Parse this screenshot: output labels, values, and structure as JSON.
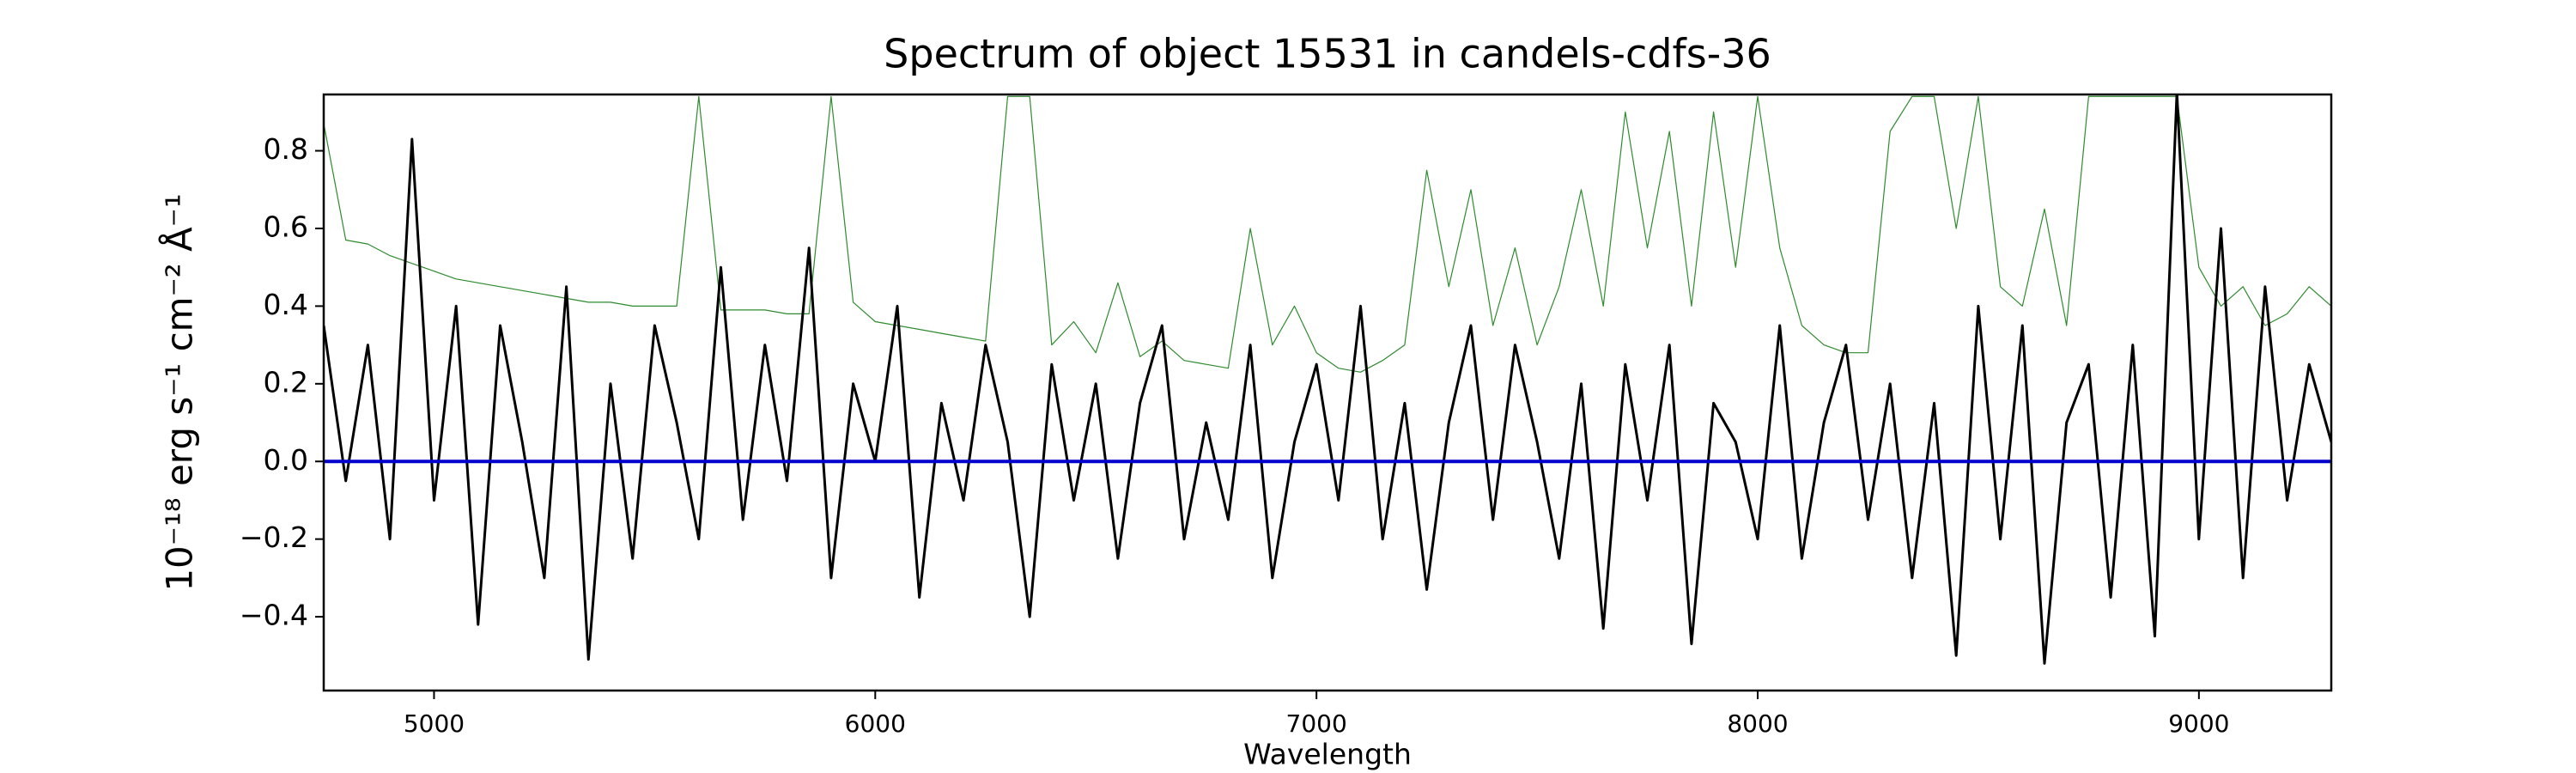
{
  "chart_data": {
    "type": "line",
    "title": "Spectrum of object 15531 in candels-cdfs-36",
    "xlabel": "Wavelength",
    "ylabel": "10⁻¹⁸ erg s⁻¹ cm⁻² Å⁻¹",
    "x": [
      4750,
      4800,
      4850,
      4900,
      4950,
      5000,
      5050,
      5100,
      5150,
      5200,
      5250,
      5300,
      5350,
      5400,
      5450,
      5500,
      5550,
      5600,
      5650,
      5700,
      5750,
      5800,
      5850,
      5900,
      5950,
      6000,
      6050,
      6100,
      6150,
      6200,
      6250,
      6300,
      6350,
      6400,
      6450,
      6500,
      6550,
      6600,
      6650,
      6700,
      6750,
      6800,
      6850,
      6900,
      6950,
      7000,
      7050,
      7100,
      7150,
      7200,
      7250,
      7300,
      7350,
      7400,
      7450,
      7500,
      7550,
      7600,
      7650,
      7700,
      7750,
      7800,
      7850,
      7900,
      7950,
      8000,
      8050,
      8100,
      8150,
      8200,
      8250,
      8300,
      8350,
      8400,
      8450,
      8500,
      8550,
      8600,
      8650,
      8700,
      8750,
      8800,
      8850,
      8900,
      8950,
      9000,
      9050,
      9100,
      9150,
      9200,
      9250,
      9300
    ],
    "series": [
      {
        "color": "#2e8b2e",
        "width": 1.2,
        "values": [
          0.87,
          0.57,
          0.56,
          0.53,
          0.51,
          0.49,
          0.47,
          0.46,
          0.45,
          0.44,
          0.43,
          0.42,
          0.41,
          0.41,
          0.4,
          0.4,
          0.4,
          0.94,
          0.39,
          0.39,
          0.39,
          0.38,
          0.38,
          0.94,
          0.41,
          0.36,
          0.35,
          0.34,
          0.33,
          0.32,
          0.31,
          0.94,
          0.94,
          0.3,
          0.36,
          0.28,
          0.46,
          0.27,
          0.31,
          0.26,
          0.25,
          0.24,
          0.6,
          0.3,
          0.4,
          0.28,
          0.24,
          0.23,
          0.26,
          0.3,
          0.75,
          0.45,
          0.7,
          0.35,
          0.55,
          0.3,
          0.45,
          0.7,
          0.4,
          0.9,
          0.55,
          0.85,
          0.4,
          0.9,
          0.5,
          0.94,
          0.55,
          0.35,
          0.3,
          0.28,
          0.28,
          0.85,
          0.94,
          0.94,
          0.6,
          0.94,
          0.45,
          0.4,
          0.65,
          0.35,
          0.94,
          0.94,
          0.94,
          0.94,
          0.94,
          0.5,
          0.4,
          0.45,
          0.35,
          0.38,
          0.45,
          0.4
        ]
      },
      {
        "color": "#000000",
        "width": 3,
        "values": [
          0.35,
          -0.05,
          0.3,
          -0.2,
          0.83,
          -0.1,
          0.4,
          -0.42,
          0.35,
          0.05,
          -0.3,
          0.45,
          -0.51,
          0.2,
          -0.25,
          0.35,
          0.1,
          -0.2,
          0.5,
          -0.15,
          0.3,
          -0.05,
          0.55,
          -0.3,
          0.2,
          0.0,
          0.4,
          -0.35,
          0.15,
          -0.1,
          0.3,
          0.05,
          -0.4,
          0.25,
          -0.1,
          0.2,
          -0.25,
          0.15,
          0.35,
          -0.2,
          0.1,
          -0.15,
          0.3,
          -0.3,
          0.05,
          0.25,
          -0.1,
          0.4,
          -0.2,
          0.15,
          -0.33,
          0.1,
          0.35,
          -0.15,
          0.3,
          0.05,
          -0.25,
          0.2,
          -0.43,
          0.25,
          -0.1,
          0.3,
          -0.47,
          0.15,
          0.05,
          -0.2,
          0.35,
          -0.25,
          0.1,
          0.3,
          -0.15,
          0.2,
          -0.3,
          0.15,
          -0.5,
          0.4,
          -0.2,
          0.35,
          -0.52,
          0.1,
          0.25,
          -0.35,
          0.3,
          -0.45,
          0.95,
          -0.2,
          0.6,
          -0.3,
          0.45,
          -0.1,
          0.25,
          0.05
        ]
      },
      {
        "color": "#0000cc",
        "width": 4,
        "values": [
          0,
          0,
          0,
          0,
          0,
          0,
          0,
          0,
          0,
          0,
          0,
          0,
          0,
          0,
          0,
          0,
          0,
          0,
          0,
          0,
          0,
          0,
          0,
          0,
          0,
          0,
          0,
          0,
          0,
          0,
          0,
          0,
          0,
          0,
          0,
          0,
          0,
          0,
          0,
          0,
          0,
          0,
          0,
          0,
          0,
          0,
          0,
          0,
          0,
          0,
          0,
          0,
          0,
          0,
          0,
          0,
          0,
          0,
          0,
          0,
          0,
          0,
          0,
          0,
          0,
          0,
          0,
          0,
          0,
          0,
          0,
          0,
          0,
          0,
          0,
          0,
          0,
          0,
          0,
          0,
          0,
          0,
          0,
          0,
          0,
          0,
          0,
          0,
          0,
          0,
          0,
          0
        ]
      }
    ],
    "xlim": [
      4750,
      9300
    ],
    "ylim": [
      -0.59,
      0.945
    ],
    "xticks": [
      5000,
      6000,
      7000,
      8000,
      9000
    ],
    "yticks": [
      {
        "value": -0.4,
        "label": "−0.4"
      },
      {
        "value": -0.2,
        "label": "−0.2"
      },
      {
        "value": 0,
        "label": "0.0"
      },
      0.2,
      0.4,
      0.6,
      0.8
    ],
    "grid": false
  }
}
